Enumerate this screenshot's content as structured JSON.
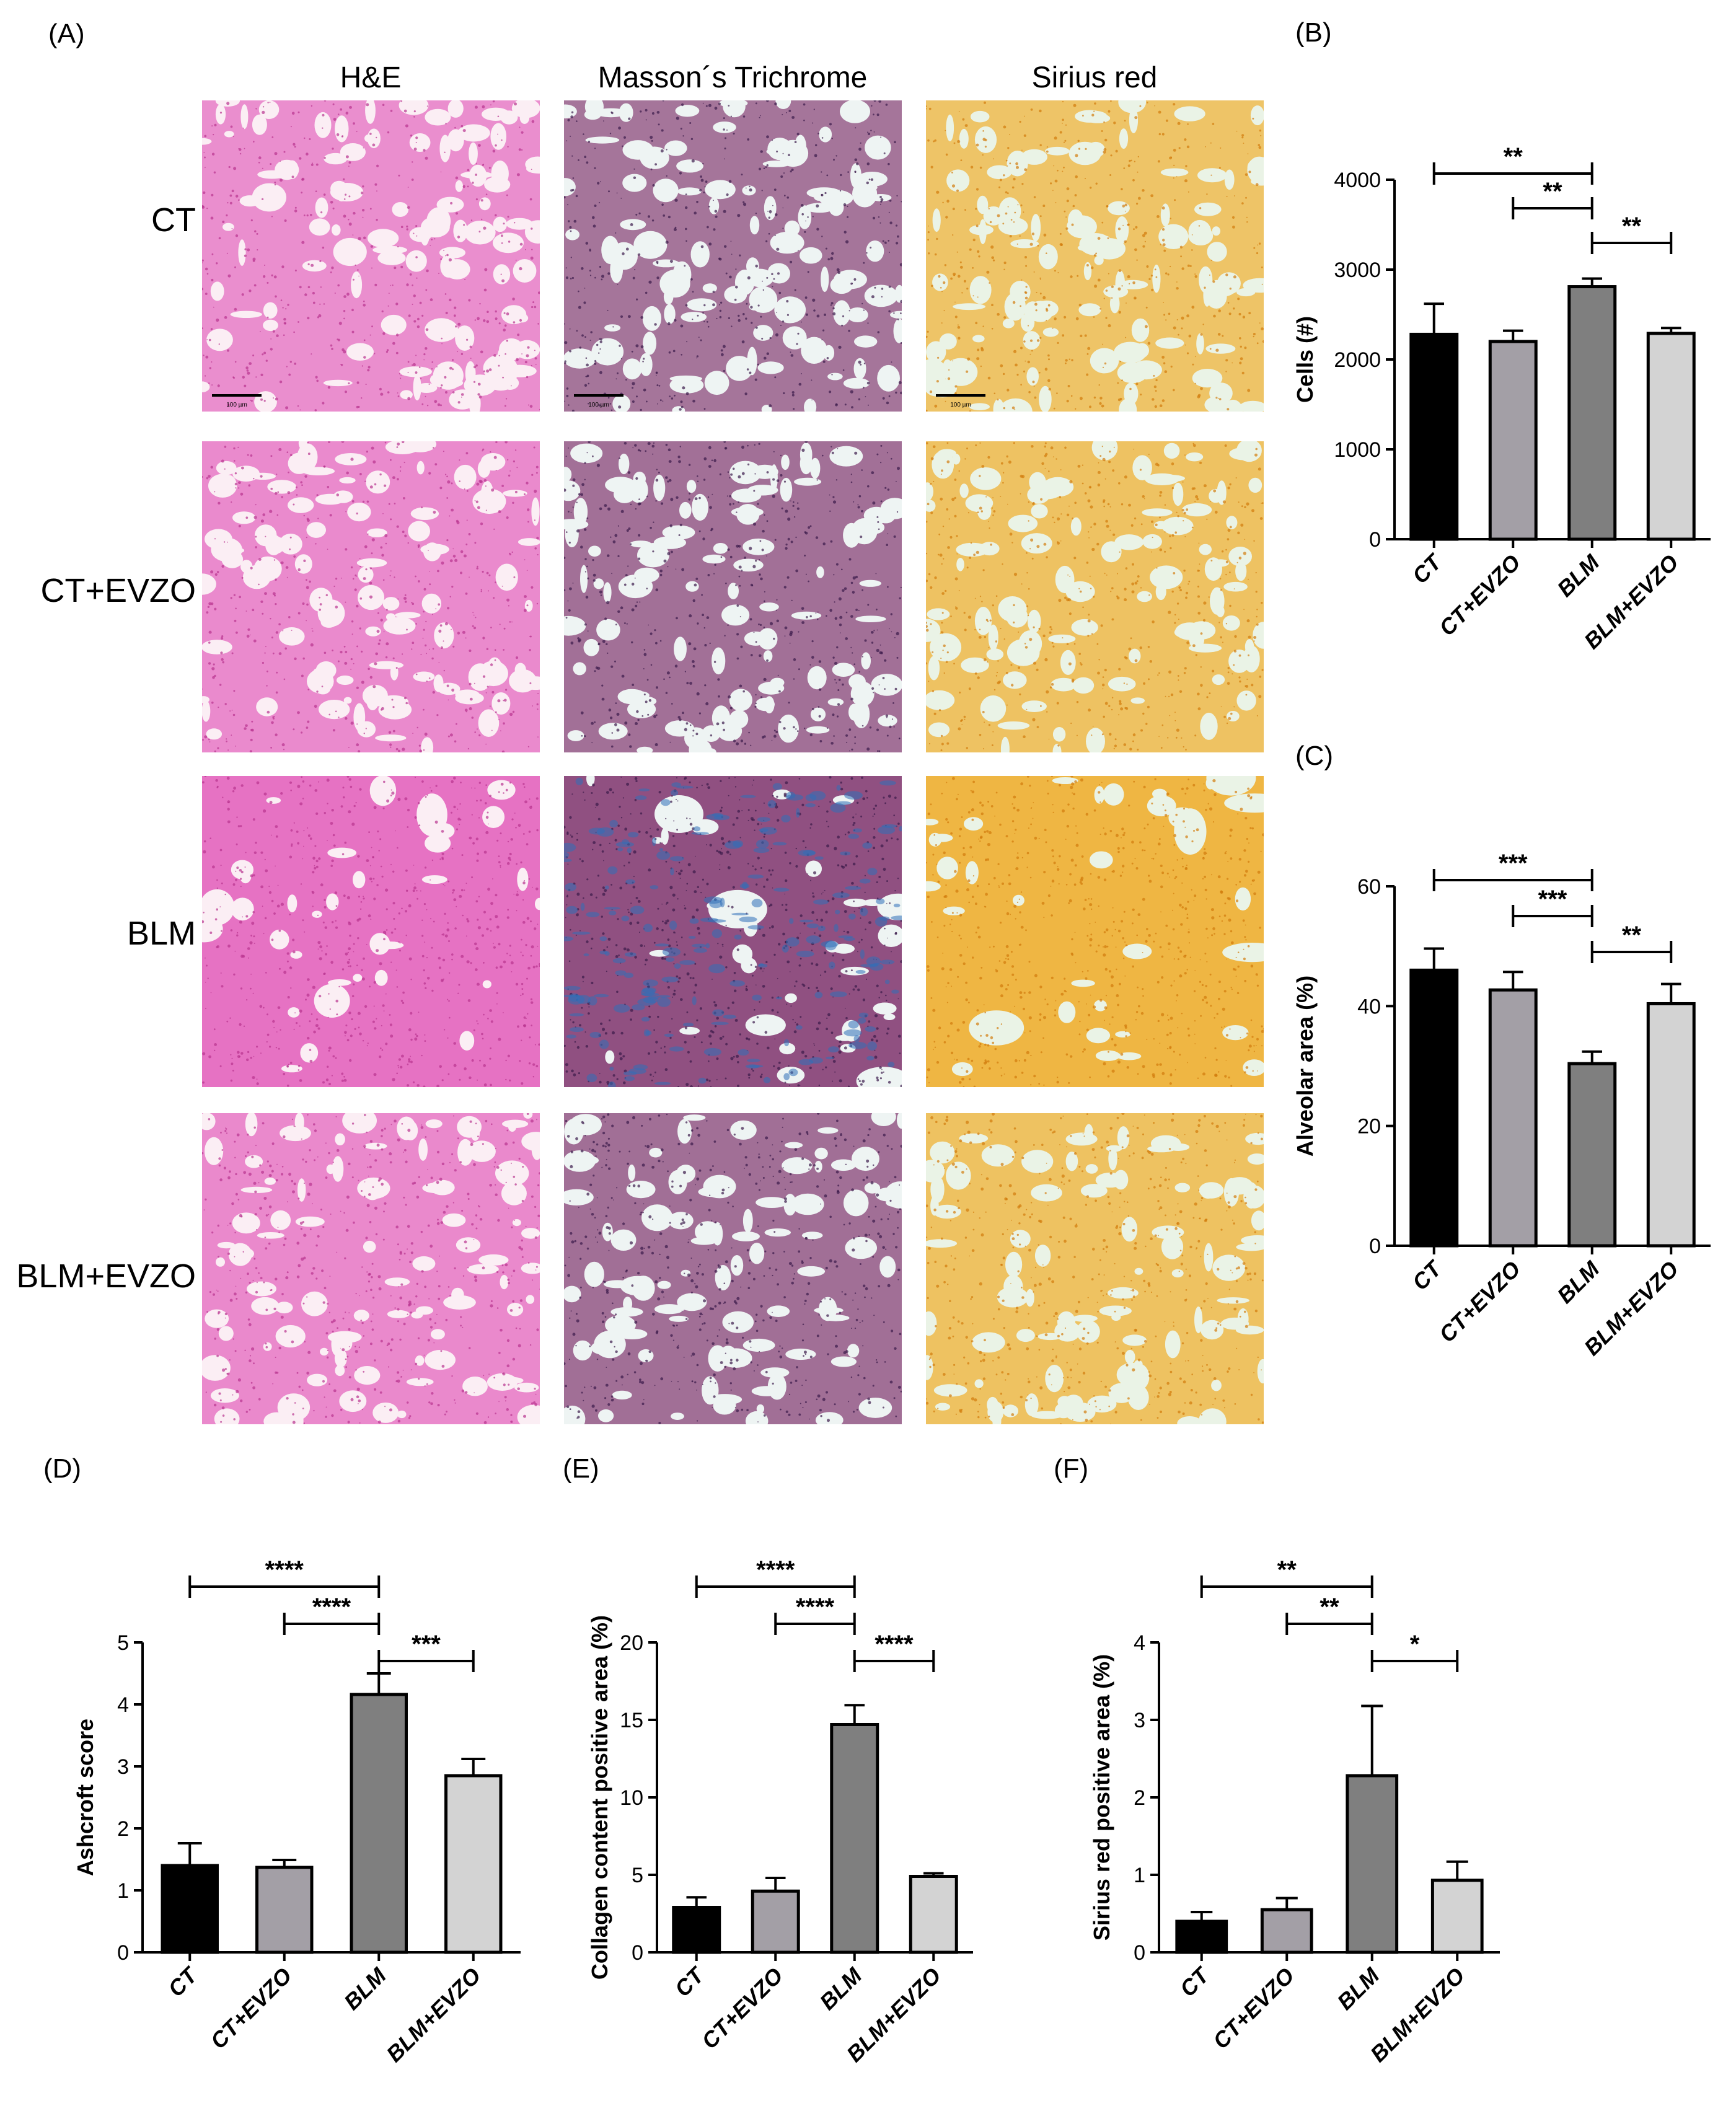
{
  "panel_a": {
    "letter": "(A)",
    "columns": [
      "H&E",
      "Masson´s Trichrome",
      "Sirius red"
    ],
    "rows": [
      "CT",
      "CT+EVZO",
      "BLM",
      "BLM+EVZO"
    ],
    "scale_bar_text": "100 µm",
    "stain_colors": {
      "he": {
        "bg": "#fbeef4",
        "tissue": "#e055b8",
        "dark": "#b8338f"
      },
      "masson": {
        "bg": "#eef4f3",
        "tissue": "#7a2a66",
        "dark": "#3a1a4a",
        "blue": "#2f6fb8"
      },
      "sirius": {
        "bg": "#eaf3e6",
        "tissue": "#f0a81c",
        "dark": "#d27a0c"
      }
    }
  },
  "chart_data": [
    {
      "id": "B",
      "letter": "(B)",
      "type": "bar",
      "categories": [
        "CT",
        "CT+EVZO",
        "BLM",
        "BLM+EVZO"
      ],
      "values": [
        2280,
        2200,
        2810,
        2290
      ],
      "errors": [
        340,
        120,
        90,
        60
      ],
      "colors": [
        "#000000",
        "#a39fa6",
        "#7f7f7f",
        "#d3d3d3"
      ],
      "ylabel": "Cells (#)",
      "ylim": [
        0,
        4000
      ],
      "yticks": [
        0,
        1000,
        2000,
        3000,
        4000
      ],
      "significance": [
        {
          "from": 0,
          "to": 2,
          "label": "**"
        },
        {
          "from": 1,
          "to": 2,
          "label": "**"
        },
        {
          "from": 2,
          "to": 3,
          "label": "**"
        }
      ]
    },
    {
      "id": "C",
      "letter": "(C)",
      "type": "bar",
      "categories": [
        "CT",
        "CT+EVZO",
        "BLM",
        "BLM+EVZO"
      ],
      "values": [
        46,
        42.7,
        30.4,
        40.4
      ],
      "errors": [
        3.6,
        3.0,
        2.0,
        3.3
      ],
      "colors": [
        "#000000",
        "#a39fa6",
        "#7f7f7f",
        "#d3d3d3"
      ],
      "ylabel": "Alveolar area (%)",
      "ylim": [
        0,
        60
      ],
      "yticks": [
        0,
        20,
        40,
        60
      ],
      "significance": [
        {
          "from": 0,
          "to": 2,
          "label": "***"
        },
        {
          "from": 1,
          "to": 2,
          "label": "***"
        },
        {
          "from": 2,
          "to": 3,
          "label": "**"
        }
      ]
    },
    {
      "id": "D",
      "letter": "(D)",
      "type": "bar",
      "categories": [
        "CT",
        "CT+EVZO",
        "BLM",
        "BLM+EVZO"
      ],
      "values": [
        1.4,
        1.37,
        4.16,
        2.85
      ],
      "errors": [
        0.36,
        0.12,
        0.34,
        0.27
      ],
      "colors": [
        "#000000",
        "#a39fa6",
        "#7f7f7f",
        "#d3d3d3"
      ],
      "ylabel": "Ashcroft score",
      "ylim": [
        0,
        5
      ],
      "yticks": [
        0,
        1,
        2,
        3,
        4,
        5
      ],
      "significance": [
        {
          "from": 0,
          "to": 2,
          "label": "****"
        },
        {
          "from": 1,
          "to": 2,
          "label": "****"
        },
        {
          "from": 2,
          "to": 3,
          "label": "***"
        }
      ]
    },
    {
      "id": "E",
      "letter": "(E)",
      "type": "bar",
      "categories": [
        "CT",
        "CT+EVZO",
        "BLM",
        "BLM+EVZO"
      ],
      "values": [
        2.9,
        3.95,
        14.7,
        4.9
      ],
      "errors": [
        0.65,
        0.85,
        1.25,
        0.2
      ],
      "colors": [
        "#000000",
        "#a39fa6",
        "#7f7f7f",
        "#d3d3d3"
      ],
      "ylabel": "Collagen content positive area (%)",
      "ylim": [
        0,
        20
      ],
      "yticks": [
        0,
        5,
        10,
        15,
        20
      ],
      "significance": [
        {
          "from": 0,
          "to": 2,
          "label": "****"
        },
        {
          "from": 1,
          "to": 2,
          "label": "****"
        },
        {
          "from": 2,
          "to": 3,
          "label": "****"
        }
      ]
    },
    {
      "id": "F",
      "letter": "(F)",
      "type": "bar",
      "categories": [
        "CT",
        "CT+EVZO",
        "BLM",
        "BLM+EVZO"
      ],
      "values": [
        0.4,
        0.55,
        2.28,
        0.93
      ],
      "errors": [
        0.12,
        0.15,
        0.9,
        0.24
      ],
      "colors": [
        "#000000",
        "#a39fa6",
        "#7f7f7f",
        "#d3d3d3"
      ],
      "ylabel": "Sirius red positive area (%)",
      "ylim": [
        0,
        4
      ],
      "yticks": [
        0,
        1,
        2,
        3,
        4
      ],
      "significance": [
        {
          "from": 0,
          "to": 2,
          "label": "**"
        },
        {
          "from": 1,
          "to": 2,
          "label": "**"
        },
        {
          "from": 2,
          "to": 3,
          "label": "*"
        }
      ]
    }
  ]
}
